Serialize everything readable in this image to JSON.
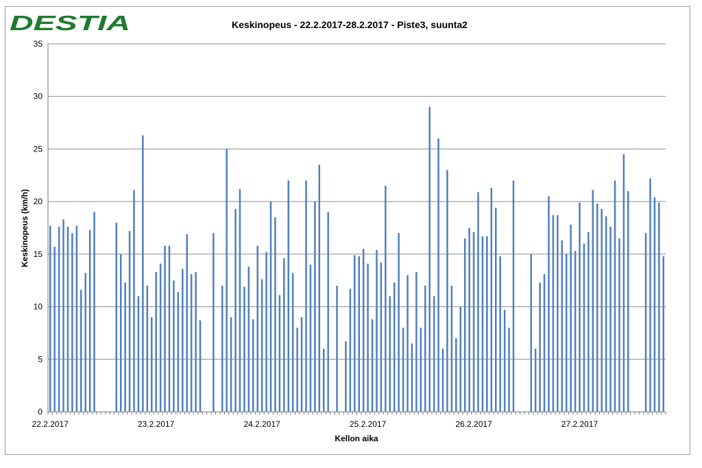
{
  "brand": {
    "name": "DESTIA",
    "color": "#1f7a2e"
  },
  "colors": {
    "bar": "#4f7fbe",
    "grid": "#8c8c8c",
    "axis": "#777777"
  },
  "chart_data": {
    "type": "bar",
    "title": "Keskinopeus - 22.2.2017-28.2.2017 - Piste3, suunta2",
    "xlabel": "Kellon aika",
    "ylabel": "Keskinopeus (km/h)",
    "ylim": [
      0,
      35
    ],
    "yticks": [
      0,
      5,
      10,
      15,
      20,
      25,
      30,
      35
    ],
    "grid": true,
    "legend": "none",
    "x_tick_labels": [
      "22.2.2017",
      "23.2.2017",
      "24.2.2017",
      "25.2.2017",
      "26.2.2017",
      "27.2.2017"
    ],
    "bars_per_day": 24,
    "values": [
      17.7,
      15.7,
      17.6,
      18.3,
      17.6,
      17.0,
      17.7,
      11.6,
      13.2,
      17.3,
      19.0,
      null,
      null,
      null,
      null,
      18.0,
      15.0,
      12.3,
      17.2,
      21.1,
      11.0,
      26.3,
      12.0,
      9.0,
      13.3,
      14.1,
      15.8,
      15.8,
      12.5,
      11.4,
      13.6,
      16.9,
      13.1,
      13.3,
      8.7,
      null,
      null,
      17.0,
      null,
      12.0,
      25.0,
      9.0,
      19.3,
      21.2,
      11.9,
      13.8,
      8.8,
      15.8,
      12.6,
      15.2,
      20.0,
      18.5,
      11.1,
      14.6,
      22.0,
      13.2,
      8.0,
      9.0,
      22.0,
      14.0,
      20.0,
      23.5,
      6.0,
      19.0,
      null,
      12.0,
      null,
      6.7,
      11.7,
      14.9,
      14.8,
      15.5,
      14.1,
      8.8,
      15.4,
      14.2,
      21.5,
      11.0,
      12.3,
      17.0,
      8.0,
      13.0,
      6.5,
      13.3,
      8.0,
      12.0,
      29.0,
      11.0,
      26.0,
      6.0,
      23.0,
      12.0,
      7.0,
      10.0,
      16.5,
      17.5,
      17.1,
      20.9,
      16.7,
      16.7,
      21.3,
      19.4,
      14.8,
      9.7,
      8.0,
      22.0,
      null,
      null,
      null,
      15.0,
      6.0,
      12.3,
      13.1,
      20.5,
      18.7,
      18.7,
      16.3,
      15.0,
      17.8,
      15.3,
      19.9,
      16.0,
      17.1,
      21.1,
      19.8,
      19.3,
      18.6,
      17.6,
      22.0,
      16.5,
      24.5,
      21.0,
      null,
      null,
      null,
      17.0,
      22.2,
      20.4,
      19.9,
      14.8
    ]
  }
}
